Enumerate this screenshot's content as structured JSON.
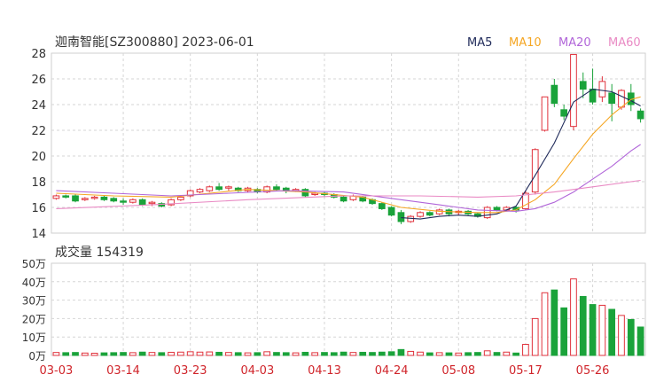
{
  "header": {
    "title": "迦南智能[SZ300880] 2023-06-01",
    "volume_label": "成交量 154319"
  },
  "legend": [
    {
      "name": "MA5",
      "color": "#1f2a5a"
    },
    {
      "name": "MA10",
      "color": "#f5a623"
    },
    {
      "name": "MA20",
      "color": "#b166d9"
    },
    {
      "name": "MA60",
      "color": "#e98ac4"
    }
  ],
  "colors": {
    "up": "#e0323c",
    "down": "#1aa33a",
    "date": "#d0252b"
  },
  "chart_data": {
    "type": "candlestick",
    "price_axis": {
      "ticks": [
        "28",
        "26",
        "24",
        "22",
        "20",
        "18",
        "16",
        "14"
      ],
      "ylim": [
        14,
        28
      ]
    },
    "volume_axis": {
      "ticks": [
        "50万",
        "40万",
        "30万",
        "20万",
        "10万",
        "0万"
      ],
      "ylim": [
        0,
        50
      ]
    },
    "x_tick_labels": [
      {
        "label": "03-03",
        "index": 0
      },
      {
        "label": "03-14",
        "index": 7
      },
      {
        "label": "03-23",
        "index": 14
      },
      {
        "label": "04-03",
        "index": 21
      },
      {
        "label": "04-13",
        "index": 28
      },
      {
        "label": "04-24",
        "index": 35
      },
      {
        "label": "05-08",
        "index": 42
      },
      {
        "label": "05-17",
        "index": 49
      },
      {
        "label": "05-26",
        "index": 56
      }
    ],
    "candles": [
      [
        16.7,
        16.9,
        17.0,
        16.6,
        1.6
      ],
      [
        16.9,
        16.8,
        17.0,
        16.7,
        1.5
      ],
      [
        16.9,
        16.5,
        17.0,
        16.4,
        1.6
      ],
      [
        16.6,
        16.7,
        16.8,
        16.5,
        1.3
      ],
      [
        16.7,
        16.8,
        16.9,
        16.6,
        1.2
      ],
      [
        16.8,
        16.6,
        16.9,
        16.5,
        1.4
      ],
      [
        16.7,
        16.5,
        16.8,
        16.4,
        1.5
      ],
      [
        16.5,
        16.4,
        16.7,
        16.2,
        1.6
      ],
      [
        16.4,
        16.6,
        16.7,
        16.3,
        1.5
      ],
      [
        16.6,
        16.2,
        16.7,
        16.1,
        1.8
      ],
      [
        16.3,
        16.4,
        16.5,
        16.1,
        1.6
      ],
      [
        16.3,
        16.1,
        16.4,
        16.0,
        1.5
      ],
      [
        16.2,
        16.6,
        16.7,
        16.1,
        1.7
      ],
      [
        16.6,
        16.8,
        16.9,
        16.5,
        1.8
      ],
      [
        16.9,
        17.3,
        17.4,
        16.8,
        2.0
      ],
      [
        17.2,
        17.4,
        17.5,
        17.1,
        1.8
      ],
      [
        17.3,
        17.6,
        17.7,
        17.2,
        1.9
      ],
      [
        17.6,
        17.4,
        17.9,
        17.3,
        1.7
      ],
      [
        17.5,
        17.6,
        17.7,
        17.3,
        1.6
      ],
      [
        17.5,
        17.3,
        17.6,
        17.2,
        1.5
      ],
      [
        17.3,
        17.5,
        17.6,
        17.2,
        1.4
      ],
      [
        17.4,
        17.2,
        17.5,
        17.1,
        1.5
      ],
      [
        17.2,
        17.6,
        17.7,
        17.1,
        2.0
      ],
      [
        17.6,
        17.4,
        17.8,
        17.3,
        1.6
      ],
      [
        17.5,
        17.3,
        17.6,
        17.1,
        1.5
      ],
      [
        17.3,
        17.4,
        17.5,
        17.2,
        1.4
      ],
      [
        17.4,
        16.9,
        17.5,
        16.8,
        1.7
      ],
      [
        17.0,
        17.1,
        17.2,
        16.9,
        1.5
      ],
      [
        17.1,
        17.0,
        17.2,
        16.8,
        1.6
      ],
      [
        17.0,
        16.8,
        17.1,
        16.7,
        1.5
      ],
      [
        16.8,
        16.5,
        16.9,
        16.4,
        1.8
      ],
      [
        16.6,
        16.9,
        17.0,
        16.5,
        1.6
      ],
      [
        16.8,
        16.5,
        16.9,
        16.4,
        1.7
      ],
      [
        16.6,
        16.3,
        16.7,
        16.2,
        1.6
      ],
      [
        16.3,
        15.9,
        16.4,
        15.8,
        1.8
      ],
      [
        16.0,
        15.4,
        16.1,
        15.3,
        2.0
      ],
      [
        15.6,
        14.9,
        15.8,
        14.7,
        3.2
      ],
      [
        14.9,
        15.3,
        15.4,
        14.8,
        2.2
      ],
      [
        15.3,
        15.6,
        15.7,
        15.2,
        1.8
      ],
      [
        15.6,
        15.4,
        15.7,
        15.3,
        1.4
      ],
      [
        15.5,
        15.8,
        15.9,
        15.4,
        1.5
      ],
      [
        15.8,
        15.5,
        15.9,
        15.3,
        1.4
      ],
      [
        15.6,
        15.7,
        15.8,
        15.4,
        1.3
      ],
      [
        15.7,
        15.5,
        15.8,
        15.4,
        1.5
      ],
      [
        15.5,
        15.3,
        15.6,
        15.2,
        1.6
      ],
      [
        15.2,
        16.0,
        16.1,
        15.1,
        2.5
      ],
      [
        16.0,
        15.8,
        16.1,
        15.7,
        1.6
      ],
      [
        15.8,
        16.0,
        16.1,
        15.7,
        1.8
      ],
      [
        16.0,
        15.8,
        16.1,
        15.6,
        1.3
      ],
      [
        15.9,
        17.1,
        17.3,
        15.8,
        6.0
      ],
      [
        17.2,
        20.5,
        20.6,
        17.0,
        20.0
      ],
      [
        22.0,
        24.6,
        24.6,
        21.9,
        34.0
      ],
      [
        25.5,
        24.1,
        26.0,
        23.8,
        35.5
      ],
      [
        23.6,
        23.1,
        24.0,
        22.8,
        25.8
      ],
      [
        22.3,
        27.9,
        27.9,
        22.0,
        41.5
      ],
      [
        25.8,
        25.2,
        26.5,
        24.5,
        32.0
      ],
      [
        25.2,
        24.2,
        26.8,
        24.0,
        27.6
      ],
      [
        24.6,
        25.8,
        26.2,
        24.2,
        27.2
      ],
      [
        24.9,
        24.1,
        25.6,
        22.7,
        25.0
      ],
      [
        23.8,
        25.1,
        25.2,
        23.6,
        21.7
      ],
      [
        24.9,
        24.0,
        25.6,
        23.5,
        19.5
      ],
      [
        23.5,
        22.9,
        23.7,
        22.6,
        15.4
      ]
    ],
    "ma5": [
      [
        36,
        15.2
      ],
      [
        38,
        15.1
      ],
      [
        40,
        15.3
      ],
      [
        42,
        15.4
      ],
      [
        44,
        15.3
      ],
      [
        46,
        15.5
      ],
      [
        48,
        16.1
      ],
      [
        50,
        18.5
      ],
      [
        52,
        21.0
      ],
      [
        54,
        24.2
      ],
      [
        56,
        25.2
      ],
      [
        58,
        25.0
      ],
      [
        60,
        24.3
      ],
      [
        61,
        23.9
      ]
    ],
    "ma10": [
      [
        0,
        17.1
      ],
      [
        6,
        16.9
      ],
      [
        12,
        16.8
      ],
      [
        16,
        17.1
      ],
      [
        20,
        17.4
      ],
      [
        26,
        17.2
      ],
      [
        32,
        16.8
      ],
      [
        36,
        16.0
      ],
      [
        40,
        15.7
      ],
      [
        44,
        15.6
      ],
      [
        46,
        15.6
      ],
      [
        48,
        15.8
      ],
      [
        50,
        16.6
      ],
      [
        52,
        17.8
      ],
      [
        54,
        19.8
      ],
      [
        56,
        21.7
      ],
      [
        58,
        23.2
      ],
      [
        60,
        24.4
      ],
      [
        61,
        24.6
      ]
    ],
    "ma20": [
      [
        0,
        17.3
      ],
      [
        6,
        17.1
      ],
      [
        12,
        16.9
      ],
      [
        18,
        17.1
      ],
      [
        24,
        17.3
      ],
      [
        30,
        17.2
      ],
      [
        36,
        16.6
      ],
      [
        40,
        16.2
      ],
      [
        44,
        15.8
      ],
      [
        48,
        15.7
      ],
      [
        50,
        15.9
      ],
      [
        52,
        16.4
      ],
      [
        54,
        17.2
      ],
      [
        56,
        18.2
      ],
      [
        58,
        19.2
      ],
      [
        60,
        20.4
      ],
      [
        61,
        20.9
      ]
    ],
    "ma60": [
      [
        0,
        15.9
      ],
      [
        10,
        16.2
      ],
      [
        20,
        16.6
      ],
      [
        30,
        16.9
      ],
      [
        38,
        16.9
      ],
      [
        44,
        16.8
      ],
      [
        48,
        16.9
      ],
      [
        52,
        17.2
      ],
      [
        56,
        17.6
      ],
      [
        61,
        18.1
      ]
    ]
  }
}
